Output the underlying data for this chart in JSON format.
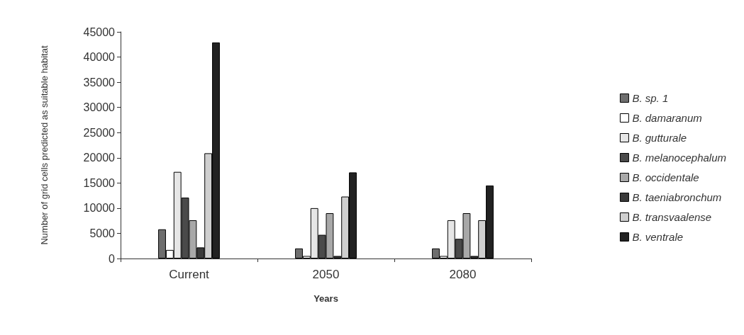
{
  "chart_data": {
    "type": "bar",
    "xlabel": "Years",
    "ylabel": "Number of grid cells predicted as suitable habitat",
    "categories": [
      "Current",
      "2050",
      "2080"
    ],
    "series": [
      {
        "name": "B. sp. 1",
        "color": "#6e6e6e",
        "values": [
          5800,
          2000,
          2000
        ]
      },
      {
        "name": "B. damaranum",
        "color": "#ffffff",
        "values": [
          1700,
          500,
          500
        ]
      },
      {
        "name": "B. gutturale",
        "color": "#e6e6e6",
        "values": [
          17200,
          10000,
          7600
        ]
      },
      {
        "name": "B. melanocephalum",
        "color": "#4a4a4a",
        "values": [
          12100,
          4700,
          3900
        ]
      },
      {
        "name": "B. occidentale",
        "color": "#a8a8a8",
        "values": [
          7600,
          9000,
          9000
        ]
      },
      {
        "name": "B. taeniabronchum",
        "color": "#3a3a3a",
        "values": [
          2200,
          500,
          500
        ]
      },
      {
        "name": "B. transvaalense",
        "color": "#cfcfcf",
        "values": [
          20900,
          12300,
          7600
        ]
      },
      {
        "name": "B. ventrale",
        "color": "#222222",
        "values": [
          42900,
          17100,
          14500
        ]
      }
    ],
    "ylim": [
      0,
      45000
    ],
    "yticks": [
      0,
      5000,
      10000,
      15000,
      20000,
      25000,
      30000,
      35000,
      40000,
      45000
    ],
    "grid": false,
    "legend": "right"
  }
}
